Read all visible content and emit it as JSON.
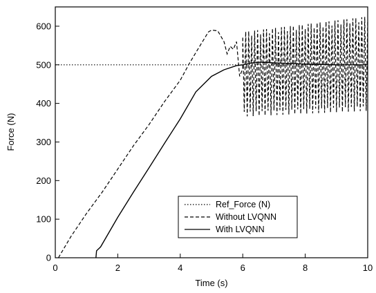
{
  "chart_data": {
    "type": "line",
    "xlabel": "Time (s)",
    "ylabel": "Force (N)",
    "xlim": [
      0,
      10
    ],
    "ylim": [
      0,
      650
    ],
    "x_ticks": [
      0,
      2,
      4,
      6,
      8,
      10
    ],
    "y_ticks": [
      0,
      100,
      200,
      300,
      400,
      500,
      600
    ],
    "grid": false,
    "legend_position": "bottom-center",
    "series": [
      {
        "name": "Ref_Force (N)",
        "style": "dotted",
        "x": [
          0,
          10
        ],
        "y": [
          500,
          500
        ]
      },
      {
        "name": "Without LVQNN",
        "style": "dashed",
        "x": [
          0.1,
          0.5,
          1.0,
          1.5,
          2.0,
          2.5,
          3.0,
          3.5,
          4.0,
          4.3,
          4.6,
          4.9,
          5.0,
          5.2,
          5.4,
          5.5,
          5.6,
          5.7,
          5.8,
          5.9,
          6.0
        ],
        "y": [
          0,
          55,
          115,
          170,
          230,
          290,
          345,
          405,
          460,
          505,
          545,
          585,
          590,
          588,
          560,
          528,
          548,
          540,
          560,
          470,
          490
        ],
        "oscillation": {
          "x_start": 6.0,
          "x_end": 10.0,
          "cycles": 42,
          "peak_start": 585,
          "peak_end": 625,
          "trough_start": 370,
          "trough_end": 385
        }
      },
      {
        "name": "With LVQNN",
        "style": "solid",
        "x": [
          1.3,
          1.32,
          1.45,
          2.0,
          2.5,
          3.0,
          3.5,
          4.0,
          4.5,
          5.0,
          5.4,
          5.8,
          6.0,
          6.3,
          6.5,
          7.0,
          8.0,
          9.0,
          10.0
        ],
        "y": [
          0,
          18,
          28,
          105,
          170,
          233,
          297,
          360,
          430,
          470,
          487,
          498,
          500,
          505,
          507,
          505,
          502,
          500,
          500
        ]
      }
    ]
  }
}
